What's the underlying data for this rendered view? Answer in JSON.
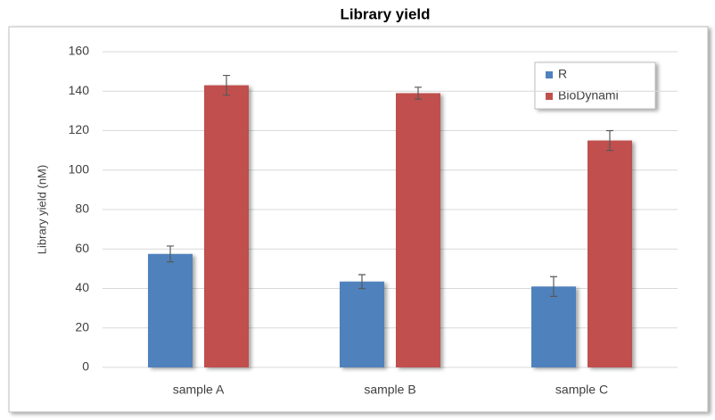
{
  "chart_data": {
    "type": "bar",
    "title": "Library yield",
    "y_label": "Library yield (nM)",
    "categories": [
      "sample A",
      "sample B",
      "sample C"
    ],
    "series": [
      {
        "name": "R",
        "color": "#4f81bd",
        "values": [
          57.5,
          43.5,
          41
        ],
        "errors": [
          4,
          3.5,
          5
        ]
      },
      {
        "name": "BioDynami",
        "color": "#c0504d",
        "values": [
          143,
          139,
          115
        ],
        "errors": [
          5,
          3,
          5
        ]
      }
    ],
    "ylim": [
      0,
      160
    ],
    "yticks": [
      0,
      20,
      40,
      60,
      80,
      100,
      120,
      140,
      160
    ],
    "grid": true,
    "legend": "top-right"
  }
}
